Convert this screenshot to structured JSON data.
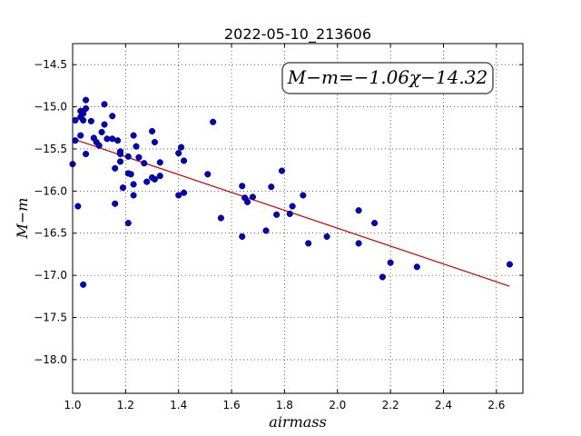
{
  "chart_data": {
    "type": "scatter",
    "title": "2022-05-10_213606",
    "xlabel": "airmass",
    "ylabel": "M−m",
    "xlim": [
      1.0,
      2.7
    ],
    "ylim": [
      -18.4,
      -14.25
    ],
    "yaxis_inverted": true,
    "grid": true,
    "x_ticks": [
      1.0,
      1.2,
      1.4,
      1.6,
      1.8,
      2.0,
      2.2,
      2.4,
      2.6
    ],
    "x_tick_labels": [
      "1.0",
      "1.2",
      "1.4",
      "1.6",
      "1.8",
      "2.0",
      "2.2",
      "2.4",
      "2.6"
    ],
    "y_ticks": [
      -14.5,
      -15.0,
      -15.5,
      -16.0,
      -16.5,
      -17.0,
      -17.5,
      -18.0
    ],
    "y_tick_labels": [
      "−14.5",
      "−15.0",
      "−15.5",
      "−16.0",
      "−16.5",
      "−17.0",
      "−17.5",
      "−18.0"
    ],
    "point_color": "#0000cc",
    "fit_color": "#cc0000",
    "annotation": {
      "text": "M−m=−1.06χ−14.32",
      "placement": "top-right",
      "slope": -1.06,
      "intercept": -14.32
    },
    "fit_line": {
      "x": [
        1.0,
        2.65
      ],
      "y": [
        -15.38,
        -17.13
      ]
    },
    "points": [
      {
        "x": 1.0,
        "y": -15.68
      },
      {
        "x": 1.01,
        "y": -15.4
      },
      {
        "x": 1.01,
        "y": -15.16
      },
      {
        "x": 1.02,
        "y": -16.18
      },
      {
        "x": 1.03,
        "y": -15.05
      },
      {
        "x": 1.03,
        "y": -15.12
      },
      {
        "x": 1.03,
        "y": -15.34
      },
      {
        "x": 1.04,
        "y": -15.08
      },
      {
        "x": 1.04,
        "y": -15.16
      },
      {
        "x": 1.04,
        "y": -17.11
      },
      {
        "x": 1.05,
        "y": -15.02
      },
      {
        "x": 1.05,
        "y": -15.56
      },
      {
        "x": 1.05,
        "y": -14.92
      },
      {
        "x": 1.07,
        "y": -15.17
      },
      {
        "x": 1.08,
        "y": -15.37
      },
      {
        "x": 1.09,
        "y": -15.42
      },
      {
        "x": 1.1,
        "y": -15.46
      },
      {
        "x": 1.11,
        "y": -15.3
      },
      {
        "x": 1.12,
        "y": -15.21
      },
      {
        "x": 1.12,
        "y": -14.97
      },
      {
        "x": 1.13,
        "y": -15.38
      },
      {
        "x": 1.15,
        "y": -15.38
      },
      {
        "x": 1.15,
        "y": -15.11
      },
      {
        "x": 1.16,
        "y": -15.73
      },
      {
        "x": 1.16,
        "y": -16.15
      },
      {
        "x": 1.17,
        "y": -15.4
      },
      {
        "x": 1.18,
        "y": -15.53
      },
      {
        "x": 1.18,
        "y": -15.56
      },
      {
        "x": 1.18,
        "y": -15.65
      },
      {
        "x": 1.19,
        "y": -15.96
      },
      {
        "x": 1.21,
        "y": -16.38
      },
      {
        "x": 1.21,
        "y": -15.79
      },
      {
        "x": 1.21,
        "y": -15.59
      },
      {
        "x": 1.22,
        "y": -15.8
      },
      {
        "x": 1.23,
        "y": -15.34
      },
      {
        "x": 1.23,
        "y": -15.92
      },
      {
        "x": 1.23,
        "y": -16.05
      },
      {
        "x": 1.24,
        "y": -15.47
      },
      {
        "x": 1.25,
        "y": -15.6
      },
      {
        "x": 1.27,
        "y": -15.67
      },
      {
        "x": 1.28,
        "y": -15.89
      },
      {
        "x": 1.3,
        "y": -15.29
      },
      {
        "x": 1.3,
        "y": -15.84
      },
      {
        "x": 1.31,
        "y": -15.86
      },
      {
        "x": 1.31,
        "y": -15.42
      },
      {
        "x": 1.33,
        "y": -15.82
      },
      {
        "x": 1.33,
        "y": -15.66
      },
      {
        "x": 1.4,
        "y": -15.55
      },
      {
        "x": 1.4,
        "y": -16.05
      },
      {
        "x": 1.41,
        "y": -15.48
      },
      {
        "x": 1.42,
        "y": -16.02
      },
      {
        "x": 1.42,
        "y": -15.64
      },
      {
        "x": 1.51,
        "y": -15.8
      },
      {
        "x": 1.53,
        "y": -15.18
      },
      {
        "x": 1.56,
        "y": -16.32
      },
      {
        "x": 1.64,
        "y": -16.54
      },
      {
        "x": 1.64,
        "y": -15.94
      },
      {
        "x": 1.65,
        "y": -16.08
      },
      {
        "x": 1.66,
        "y": -16.13
      },
      {
        "x": 1.68,
        "y": -16.07
      },
      {
        "x": 1.73,
        "y": -16.47
      },
      {
        "x": 1.75,
        "y": -15.95
      },
      {
        "x": 1.77,
        "y": -16.28
      },
      {
        "x": 1.79,
        "y": -15.76
      },
      {
        "x": 1.82,
        "y": -16.27
      },
      {
        "x": 1.83,
        "y": -16.18
      },
      {
        "x": 1.87,
        "y": -16.05
      },
      {
        "x": 1.89,
        "y": -16.62
      },
      {
        "x": 1.96,
        "y": -16.54
      },
      {
        "x": 2.08,
        "y": -16.23
      },
      {
        "x": 2.08,
        "y": -16.62
      },
      {
        "x": 2.14,
        "y": -16.38
      },
      {
        "x": 2.17,
        "y": -17.02
      },
      {
        "x": 2.2,
        "y": -16.85
      },
      {
        "x": 2.3,
        "y": -16.9
      },
      {
        "x": 2.65,
        "y": -16.87
      }
    ]
  }
}
